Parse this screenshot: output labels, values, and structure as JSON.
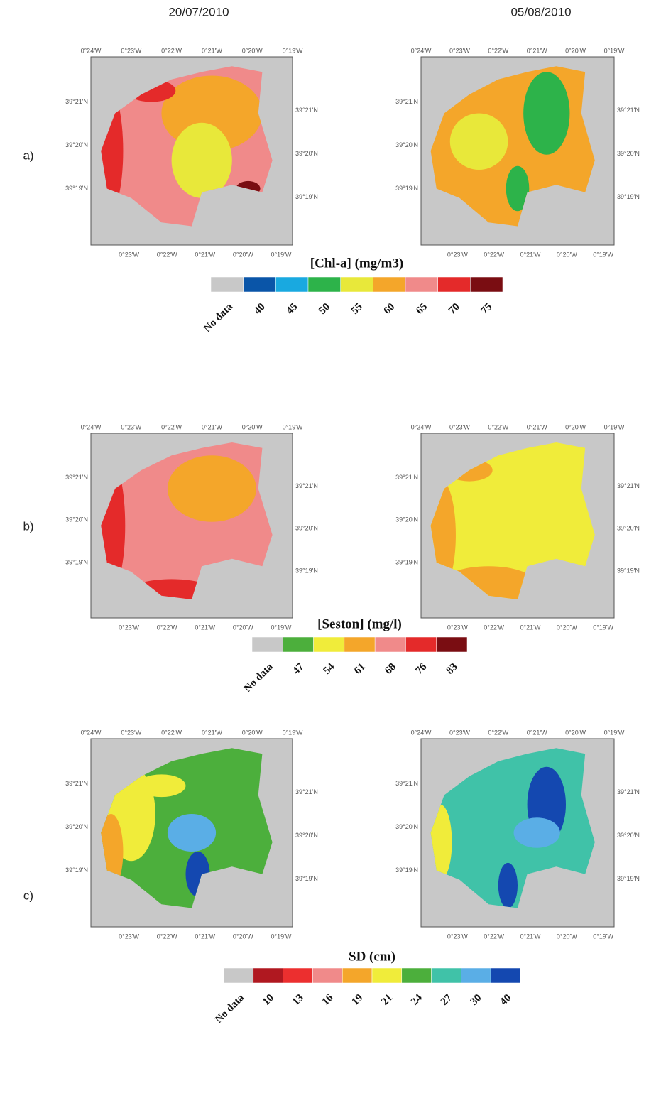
{
  "columns": [
    "20/07/2010",
    "05/08/2010"
  ],
  "lon_labels_top": [
    "0°24'W",
    "0°23'W",
    "0°22'W",
    "0°21'W",
    "0°20'W",
    "0°19'W"
  ],
  "lon_labels_bottom": [
    "0°23'W",
    "0°22'W",
    "0°21'W",
    "0°20'W",
    "0°19'W"
  ],
  "lat_labels": [
    "39°21'N",
    "39°20'N",
    "39°19'N"
  ],
  "rows": [
    {
      "label": "a)",
      "legend": {
        "title": "[Chl-a] (mg/m3)",
        "items": [
          {
            "label": "No data",
            "color": "#c8c8c8"
          },
          {
            "label": 40,
            "color": "#0a55a8"
          },
          {
            "label": 45,
            "color": "#19a9e0"
          },
          {
            "label": 50,
            "color": "#2db34a"
          },
          {
            "label": 55,
            "color": "#e8e83a"
          },
          {
            "label": 60,
            "color": "#f4a62a"
          },
          {
            "label": 65,
            "color": "#f08a8a"
          },
          {
            "label": 70,
            "color": "#e42a2a"
          },
          {
            "label": 75,
            "color": "#7a0d12"
          }
        ]
      }
    },
    {
      "label": "b)",
      "legend": {
        "title": "[Seston] (mg/l)",
        "items": [
          {
            "label": "No data",
            "color": "#c8c8c8"
          },
          {
            "label": 47,
            "color": "#4caf3c"
          },
          {
            "label": 54,
            "color": "#f0ec3a"
          },
          {
            "label": 61,
            "color": "#f4a62a"
          },
          {
            "label": 68,
            "color": "#f08a8a"
          },
          {
            "label": 76,
            "color": "#e42a2a"
          },
          {
            "label": 83,
            "color": "#7a0d12"
          }
        ]
      }
    },
    {
      "label": "c)",
      "legend": {
        "title": "SD (cm)",
        "items": [
          {
            "label": "No data",
            "color": "#c8c8c8"
          },
          {
            "label": 10,
            "color": "#b01820"
          },
          {
            "label": 13,
            "color": "#ec2f2f"
          },
          {
            "label": 16,
            "color": "#f08a8a"
          },
          {
            "label": 19,
            "color": "#f4a62a"
          },
          {
            "label": 21,
            "color": "#f0ec3a"
          },
          {
            "label": 24,
            "color": "#4caf3c"
          },
          {
            "label": 27,
            "color": "#40c2a8"
          },
          {
            "label": 30,
            "color": "#5aaee6"
          },
          {
            "label": 40,
            "color": "#1448b0"
          }
        ]
      }
    }
  ]
}
